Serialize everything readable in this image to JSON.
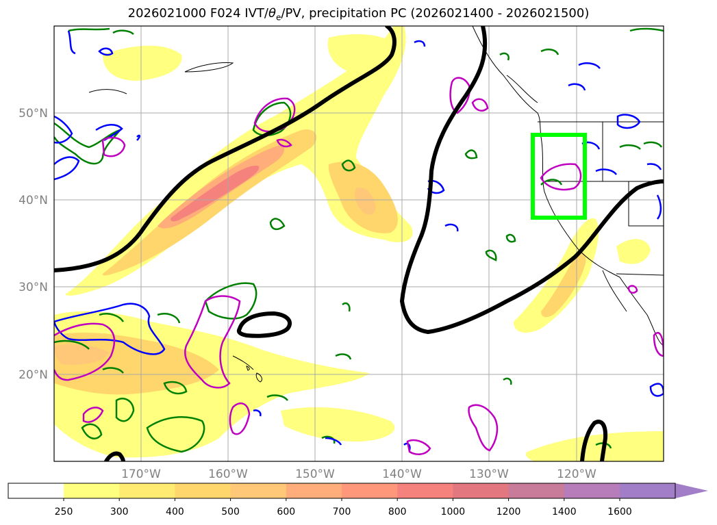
{
  "title": {
    "prefix": "2026021000 F024 IVT/",
    "theta": "θ",
    "sub": "e",
    "suffix": "/PV, precipitation PC (2026021400 - 2026021500)"
  },
  "map": {
    "lat_labels": [
      "50°N",
      "40°N",
      "30°N",
      "20°N"
    ],
    "lon_labels": [
      "170°W",
      "160°W",
      "150°W",
      "140°W",
      "130°W",
      "120°W"
    ],
    "extent": {
      "lon_min": -180,
      "lon_max": -110,
      "lat_min": 10,
      "lat_max": 60
    }
  },
  "colorbar": {
    "labels": [
      "250",
      "300",
      "400",
      "500",
      "600",
      "700",
      "800",
      "1000",
      "1200",
      "1400",
      "1600"
    ],
    "colors": [
      "#ffff80",
      "#ffeb72",
      "#ffd66b",
      "#ffc878",
      "#ffad7a",
      "#ff987a",
      "#f5827c",
      "#e27780",
      "#c97b9a",
      "#b77cba",
      "#a27ec8"
    ],
    "extend": "max"
  },
  "legend_colors": {
    "ivt_fill": "#ffe37a",
    "dynamic_tropopause": "#000000",
    "pv_positive": "#0000ff",
    "pv_negative": "#c000c0",
    "theta_e": "#008000",
    "highlight_box": "#00ff00"
  }
}
